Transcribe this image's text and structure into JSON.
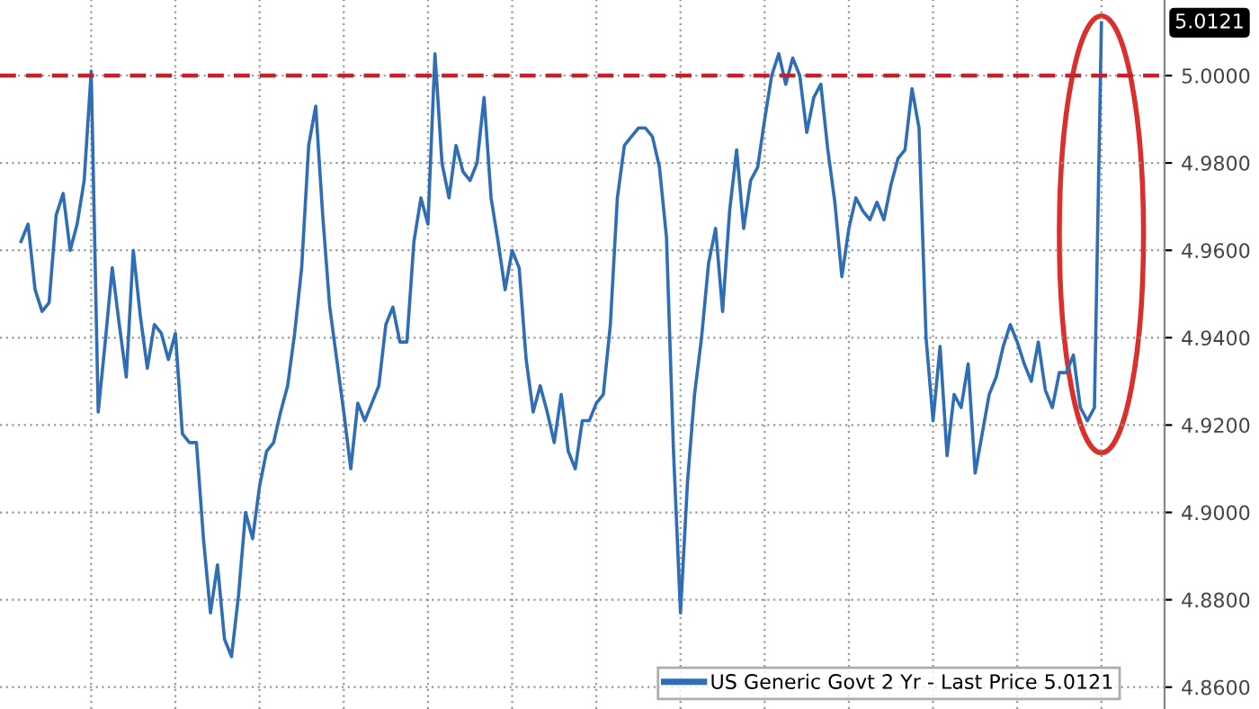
{
  "chart_data": {
    "type": "line",
    "categories": [
      null,
      null,
      null,
      null,
      null,
      null,
      null,
      null,
      null,
      null,
      null,
      null,
      null,
      null,
      null,
      null,
      null,
      null,
      null,
      null,
      null,
      null,
      null,
      null,
      null,
      null,
      null,
      null,
      null,
      null,
      null,
      null,
      null,
      null,
      null,
      null,
      null,
      null,
      null,
      null,
      null,
      null,
      null,
      null,
      null,
      null,
      null,
      null,
      null,
      null,
      null,
      null,
      null,
      null,
      null,
      null,
      null,
      null,
      null,
      null,
      null,
      null,
      null,
      null,
      null,
      null,
      null,
      null,
      null,
      null,
      null,
      null,
      null,
      null,
      null,
      null,
      null,
      null,
      null,
      null,
      null,
      null,
      null,
      null,
      null,
      null,
      null,
      null,
      null,
      null,
      null,
      null,
      null,
      null,
      null,
      null,
      null,
      null,
      null,
      null,
      null,
      null,
      null,
      null,
      null,
      null,
      null,
      null,
      null,
      null,
      null,
      null,
      null,
      null,
      null,
      null,
      null,
      null,
      null,
      null,
      null,
      null,
      null,
      null,
      null,
      null,
      null,
      null,
      null,
      null,
      null,
      null,
      null,
      null,
      null,
      null,
      null,
      null,
      null,
      null,
      null,
      null,
      null,
      null,
      null,
      null,
      null,
      null,
      null,
      null,
      null,
      null,
      null,
      null,
      null
    ],
    "series": [
      {
        "name": "US Generic Govt 2 Yr - Last Price 5.0121",
        "color": "#2f6db5",
        "values": [
          4.962,
          4.966,
          4.951,
          4.946,
          4.948,
          4.968,
          4.973,
          4.96,
          4.966,
          4.976,
          5.001,
          4.923,
          4.939,
          4.956,
          4.943,
          4.931,
          4.96,
          4.945,
          4.933,
          4.943,
          4.941,
          4.935,
          4.941,
          4.918,
          4.916,
          4.916,
          4.894,
          4.877,
          4.888,
          4.871,
          4.867,
          4.881,
          4.9,
          4.894,
          4.906,
          4.914,
          4.916,
          4.923,
          4.929,
          4.941,
          4.956,
          4.984,
          4.993,
          4.968,
          4.947,
          4.935,
          4.923,
          4.91,
          4.925,
          4.921,
          4.925,
          4.929,
          4.943,
          4.947,
          4.939,
          4.939,
          4.962,
          4.972,
          4.966,
          5.005,
          4.98,
          4.972,
          4.984,
          4.978,
          4.976,
          4.98,
          4.995,
          4.972,
          4.962,
          4.951,
          4.96,
          4.956,
          4.935,
          4.923,
          4.929,
          4.923,
          4.916,
          4.927,
          4.914,
          4.91,
          4.921,
          4.921,
          4.925,
          4.927,
          4.943,
          4.972,
          4.984,
          4.986,
          4.988,
          4.988,
          4.986,
          4.979,
          4.963,
          4.914,
          4.877,
          4.907,
          4.927,
          4.94,
          4.957,
          4.965,
          4.946,
          4.969,
          4.983,
          4.965,
          4.976,
          4.979,
          4.99,
          5.0,
          5.005,
          4.998,
          5.004,
          5.0,
          4.987,
          4.995,
          4.998,
          4.983,
          4.971,
          4.954,
          4.965,
          4.972,
          4.969,
          4.967,
          4.971,
          4.967,
          4.975,
          4.981,
          4.983,
          4.997,
          4.988,
          4.94,
          4.921,
          4.938,
          4.913,
          4.927,
          4.924,
          4.934,
          4.909,
          4.918,
          4.927,
          4.931,
          4.938,
          4.943,
          4.939,
          4.934,
          4.93,
          4.939,
          4.928,
          4.924,
          4.932,
          4.932,
          4.936,
          4.924,
          4.921,
          4.924,
          5.0121
        ]
      }
    ],
    "ylim": [
      4.855,
      5.0173
    ],
    "yticks": [
      {
        "value": 4.86,
        "label": "4.8600"
      },
      {
        "value": 4.88,
        "label": "4.8800"
      },
      {
        "value": 4.9,
        "label": "4.9000"
      },
      {
        "value": 4.92,
        "label": "4.9200"
      },
      {
        "value": 4.94,
        "label": "4.9400"
      },
      {
        "value": 4.96,
        "label": "4.9600"
      },
      {
        "value": 4.98,
        "label": "4.9800"
      },
      {
        "value": 5.0,
        "label": "5.0000"
      }
    ],
    "tick_labels": "y",
    "grid": true,
    "legend": "bottom",
    "line_style": "solid",
    "ref_lines": [
      {
        "axis": "y",
        "value": 5.0,
        "color": "#c8202a",
        "line_style": "dashed"
      }
    ],
    "annotations": [
      "5.0121"
    ]
  }
}
